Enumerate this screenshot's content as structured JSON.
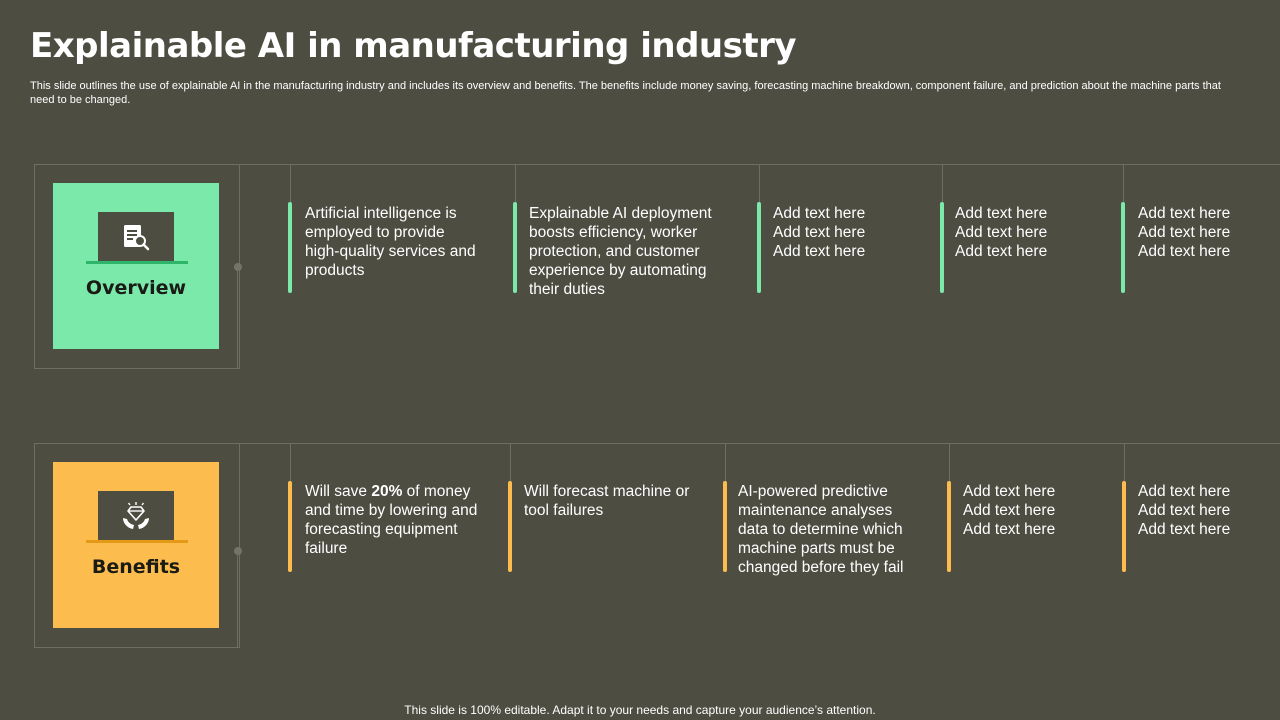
{
  "title": "Explainable AI in manufacturing industry",
  "subtitle": "This slide outlines the use of explainable AI in the manufacturing industry and includes its overview and benefits. The benefits include money saving, forecasting machine breakdown, component failure, and prediction about the machine parts that need to be changed.",
  "footer": "This slide is 100% editable. Adapt it to your needs and capture your audience’s attention.",
  "colors": {
    "background": "#4d4d42",
    "overview_accent": "#7ae9aa",
    "benefits_accent": "#fdbd4e",
    "label_text": "#1b1b16"
  },
  "overview": {
    "label": "Overview",
    "icon": "document-search-icon",
    "items": [
      "Artificial intelligence is employed to provide high-quality services and products",
      "Explainable AI deployment boosts efficiency, worker protection, and customer experience by automating their duties",
      "Add text here\nAdd text here\nAdd text here",
      "Add text here\nAdd text here\nAdd text here",
      "Add text here\nAdd text here\nAdd text here"
    ]
  },
  "benefits": {
    "label": "Benefits",
    "icon": "hands-diamond-icon",
    "item1": {
      "before": "Will save ",
      "highlight": "20%",
      "after": " of money and time by lowering and forecasting equipment failure"
    },
    "items": [
      "Will forecast machine or tool failures",
      "AI-powered predictive maintenance analyses data to determine which machine parts must be changed before they fail",
      "Add text here\nAdd text here\nAdd text here",
      "Add text here\nAdd text here\nAdd text here"
    ]
  }
}
